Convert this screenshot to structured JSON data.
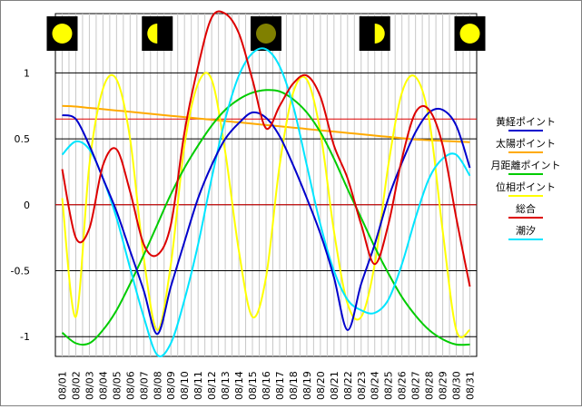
{
  "chart_data": {
    "type": "line",
    "title": "",
    "xlabel": "",
    "ylabel": "",
    "ylim": [
      -1.15,
      1.45
    ],
    "yticks": [
      -1,
      -0.5,
      0,
      0.5,
      1
    ],
    "ytick_labels": [
      "-1",
      "-0.5",
      "0",
      "0.5",
      "1"
    ],
    "reference_lines": [
      0.65,
      0
    ],
    "grid": true,
    "legend_position": "right",
    "categories": [
      "08/01",
      "08/02",
      "08/03",
      "08/04",
      "08/05",
      "08/06",
      "08/07",
      "08/08",
      "08/09",
      "08/10",
      "08/11",
      "08/12",
      "08/13",
      "08/14",
      "08/15",
      "08/16",
      "08/17",
      "08/18",
      "08/19",
      "08/20",
      "08/21",
      "08/22",
      "08/23",
      "08/24",
      "08/25",
      "08/26",
      "08/27",
      "08/28",
      "08/29",
      "08/30",
      "08/31"
    ],
    "moon_phases": [
      {
        "day": "08/01",
        "phase": "full"
      },
      {
        "day": "08/08",
        "phase": "first-quarter"
      },
      {
        "day": "08/16",
        "phase": "new"
      },
      {
        "day": "08/24",
        "phase": "last-quarter"
      },
      {
        "day": "08/31",
        "phase": "full"
      }
    ],
    "series": [
      {
        "name": "黄経ポイント",
        "color": "#0000cc",
        "values": [
          0.68,
          0.65,
          0.45,
          0.2,
          -0.05,
          -0.35,
          -0.65,
          -0.98,
          -0.62,
          -0.28,
          0.05,
          0.3,
          0.5,
          0.62,
          0.7,
          0.66,
          0.52,
          0.3,
          0.05,
          -0.22,
          -0.55,
          -0.95,
          -0.6,
          -0.3,
          0.05,
          0.32,
          0.55,
          0.7,
          0.72,
          0.6,
          0.28
        ]
      },
      {
        "name": "太陽ポイント",
        "color": "#ffaa00",
        "values": [
          0.75,
          0.745,
          0.735,
          0.725,
          0.715,
          0.705,
          0.695,
          0.685,
          0.675,
          0.665,
          0.655,
          0.645,
          0.635,
          0.625,
          0.615,
          0.605,
          0.595,
          0.585,
          0.575,
          0.565,
          0.555,
          0.545,
          0.535,
          0.525,
          0.515,
          0.505,
          0.495,
          0.49,
          0.485,
          0.48,
          0.475
        ]
      },
      {
        "name": "月距離ポイント",
        "color": "#00cc00",
        "values": [
          -0.97,
          -1.05,
          -1.05,
          -0.95,
          -0.8,
          -0.6,
          -0.38,
          -0.15,
          0.08,
          0.28,
          0.45,
          0.6,
          0.72,
          0.8,
          0.85,
          0.87,
          0.86,
          0.8,
          0.7,
          0.55,
          0.35,
          0.12,
          -0.1,
          -0.32,
          -0.52,
          -0.7,
          -0.84,
          -0.95,
          -1.02,
          -1.06,
          -1.06
        ]
      },
      {
        "name": "位相ポイント",
        "color": "#ffff00",
        "values": [
          0.05,
          -0.85,
          0.3,
          0.88,
          0.95,
          0.5,
          -0.4,
          -0.95,
          -0.45,
          0.45,
          0.92,
          0.95,
          0.4,
          -0.35,
          -0.85,
          -0.55,
          0.3,
          0.85,
          0.95,
          0.55,
          -0.2,
          -0.75,
          -0.85,
          -0.45,
          0.3,
          0.85,
          0.97,
          0.65,
          -0.2,
          -0.95,
          -0.95
        ]
      },
      {
        "name": "総合",
        "color": "#dd0000",
        "values": [
          0.27,
          -0.25,
          -0.18,
          0.3,
          0.42,
          0.1,
          -0.3,
          -0.38,
          -0.15,
          0.55,
          1.05,
          1.42,
          1.45,
          1.3,
          0.95,
          0.58,
          0.75,
          0.92,
          0.98,
          0.82,
          0.45,
          0.2,
          -0.15,
          -0.45,
          -0.15,
          0.35,
          0.7,
          0.72,
          0.45,
          -0.1,
          -0.62
        ]
      },
      {
        "name": "潮汐",
        "color": "#00e5ff",
        "values": [
          0.38,
          0.48,
          0.42,
          0.2,
          -0.1,
          -0.48,
          -0.85,
          -1.14,
          -1.05,
          -0.72,
          -0.3,
          0.2,
          0.65,
          0.98,
          1.15,
          1.18,
          1.05,
          0.75,
          0.3,
          -0.15,
          -0.5,
          -0.72,
          -0.8,
          -0.82,
          -0.72,
          -0.45,
          -0.1,
          0.2,
          0.35,
          0.38,
          0.22
        ]
      }
    ]
  }
}
